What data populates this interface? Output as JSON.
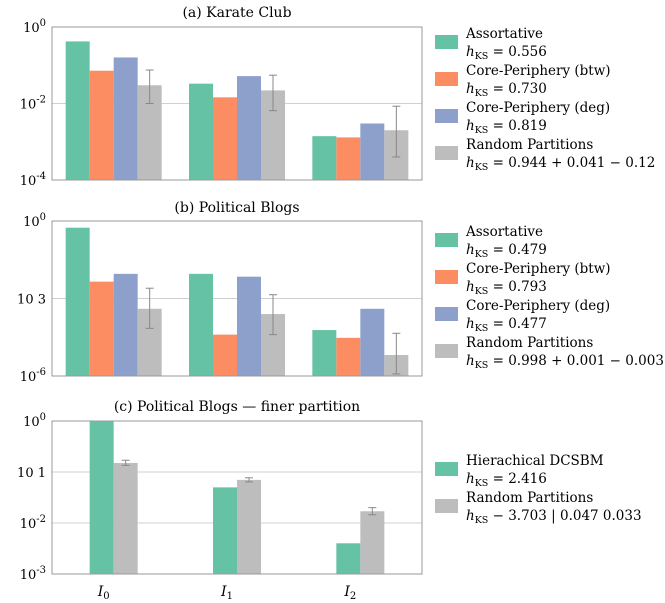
{
  "figure": {
    "x_labels": [
      "I0",
      "I1",
      "I2"
    ]
  },
  "colors": {
    "Assortative": "#66c2a5",
    "Core-Periphery (btw)": "#fc8d62",
    "Core-Periphery (deg)": "#8da0cb",
    "Random Partitions": "#bdbdbd",
    "Hierachical DCSBM": "#66c2a5"
  },
  "chart_data": [
    {
      "type": "bar",
      "title": "(a) Karate Club",
      "categories": [
        "I0",
        "I1",
        "I2"
      ],
      "yscale": "log",
      "ylim": [
        0.0001,
        1
      ],
      "yticks": [
        {
          "value": 1,
          "label": "10^0"
        },
        {
          "value": 0.01,
          "label": "10^-2"
        },
        {
          "value": 0.0001,
          "label": "10^-4"
        }
      ],
      "series": [
        {
          "name": "Assortative",
          "legend_stat": "h_KS = 0.556",
          "values": [
            0.42,
            0.033,
            0.0014
          ]
        },
        {
          "name": "Core-Periphery (btw)",
          "legend_stat": "h_KS = 0.730",
          "values": [
            0.072,
            0.0145,
            0.0013
          ]
        },
        {
          "name": "Core-Periphery (deg)",
          "legend_stat": "h_KS = 0.819",
          "values": [
            0.16,
            0.052,
            0.003
          ]
        },
        {
          "name": "Random Partitions",
          "legend_stat": "h_KS = 0.944 + 0.041 − 0.12",
          "values": [
            0.03,
            0.022,
            0.002
          ],
          "error_low": [
            0.01,
            0.0065,
            0.0004
          ],
          "error_high": [
            0.075,
            0.055,
            0.0085
          ]
        }
      ]
    },
    {
      "type": "bar",
      "title": "(b) Political Blogs",
      "categories": [
        "I0",
        "I1",
        "I2"
      ],
      "yscale": "log",
      "ylim": [
        1e-06,
        1
      ],
      "yticks": [
        {
          "value": 1,
          "label": "10^0"
        },
        {
          "value": 0.001,
          "label": "10 3"
        },
        {
          "value": 1e-06,
          "label": "10^-6"
        }
      ],
      "series": [
        {
          "name": "Assortative",
          "legend_stat": "h_KS = 0.479",
          "values": [
            0.55,
            0.009,
            6e-05
          ]
        },
        {
          "name": "Core-Periphery (btw)",
          "legend_stat": "h_KS = 0.793",
          "values": [
            0.0045,
            4e-05,
            3e-05
          ]
        },
        {
          "name": "Core-Periphery (deg)",
          "legend_stat": "h_KS = 0.477",
          "values": [
            0.009,
            0.007,
            0.0004
          ]
        },
        {
          "name": "Random Partitions",
          "legend_stat": "h_KS = 0.998 + 0.001 − 0.003",
          "values": [
            0.0004,
            0.00025,
            6.5e-06
          ],
          "error_low": [
            7e-05,
            4e-05,
            1.2e-06
          ],
          "error_high": [
            0.0025,
            0.0014,
            4.5e-05
          ]
        }
      ]
    },
    {
      "type": "bar",
      "title": "(c) Political Blogs — finer partition",
      "categories": [
        "I0",
        "I1",
        "I2"
      ],
      "yscale": "log",
      "ylim": [
        0.001,
        1
      ],
      "yticks": [
        {
          "value": 1,
          "label": "10^0"
        },
        {
          "value": 0.1,
          "label": "10 1"
        },
        {
          "value": 0.01,
          "label": "10^-2"
        },
        {
          "value": 0.001,
          "label": "10^-3"
        }
      ],
      "series": [
        {
          "name": "Hierachical DCSBM",
          "legend_stat": "h_KS = 2.416",
          "values": [
            0.98,
            0.05,
            0.004
          ]
        },
        {
          "name": "Random Partitions",
          "legend_stat": "h_KS − 3.703 | 0.047    0.033",
          "values": [
            0.15,
            0.07,
            0.017
          ],
          "error_low": [
            0.135,
            0.064,
            0.0145
          ],
          "error_high": [
            0.17,
            0.077,
            0.02
          ]
        }
      ]
    }
  ]
}
